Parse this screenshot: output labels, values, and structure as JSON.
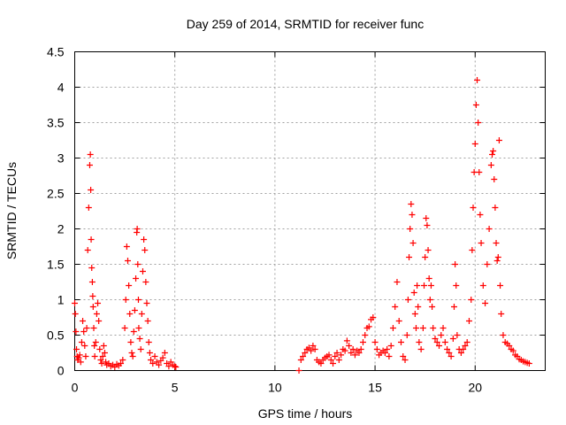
{
  "chart_data": {
    "type": "scatter",
    "title": "Day 259 of 2014, SRMTID for receiver func",
    "xlabel": "GPS time / hours",
    "ylabel": "SRMTID / TECUs",
    "xlim": [
      0,
      23.5
    ],
    "ylim": [
      0,
      4.5
    ],
    "xticks": [
      0,
      5,
      10,
      15,
      20
    ],
    "xtick_labels": [
      "0",
      "5",
      "10",
      "15",
      "20"
    ],
    "yticks": [
      0,
      0.5,
      1,
      1.5,
      2,
      2.5,
      3,
      3.5,
      4,
      4.5
    ],
    "ytick_labels": [
      "0",
      "0.5",
      "1",
      "1.5",
      "2",
      "2.5",
      "3",
      "3.5",
      "4",
      "4.5"
    ],
    "grid": true,
    "marker": "+",
    "color": "#ff0000",
    "series": [
      {
        "name": "SRMTID",
        "x": [
          0.0,
          0.03,
          0.06,
          0.09,
          0.12,
          0.15,
          0.2,
          0.25,
          0.3,
          0.35,
          0.4,
          0.45,
          0.5,
          0.55,
          0.6,
          0.65,
          0.7,
          0.75,
          0.78,
          0.8,
          0.82,
          0.85,
          0.88,
          0.9,
          0.92,
          0.95,
          0.98,
          1.0,
          1.05,
          1.1,
          1.15,
          1.2,
          1.25,
          1.3,
          1.35,
          1.4,
          1.45,
          1.5,
          1.55,
          1.6,
          1.7,
          1.8,
          1.9,
          2.0,
          2.1,
          2.2,
          2.3,
          2.4,
          2.5,
          2.55,
          2.6,
          2.65,
          2.7,
          2.75,
          2.8,
          2.85,
          2.9,
          2.95,
          3.0,
          3.05,
          3.1,
          3.12,
          3.15,
          3.18,
          3.2,
          3.25,
          3.3,
          3.35,
          3.4,
          3.45,
          3.5,
          3.55,
          3.6,
          3.65,
          3.7,
          3.75,
          3.8,
          3.9,
          4.0,
          4.1,
          4.2,
          4.3,
          4.4,
          4.5,
          4.6,
          4.7,
          4.8,
          4.9,
          5.0,
          5.05,
          11.2,
          11.3,
          11.4,
          11.5,
          11.6,
          11.7,
          11.8,
          11.9,
          12.0,
          12.1,
          12.2,
          12.3,
          12.4,
          12.5,
          12.6,
          12.7,
          12.8,
          12.9,
          13.0,
          13.1,
          13.2,
          13.3,
          13.4,
          13.5,
          13.6,
          13.7,
          13.8,
          13.9,
          14.0,
          14.1,
          14.2,
          14.3,
          14.4,
          14.5,
          14.6,
          14.7,
          14.8,
          14.9,
          15.0,
          15.1,
          15.2,
          15.3,
          15.4,
          15.5,
          15.6,
          15.7,
          15.8,
          15.9,
          16.0,
          16.1,
          16.2,
          16.3,
          16.4,
          16.5,
          16.6,
          16.65,
          16.7,
          16.75,
          16.8,
          16.85,
          16.9,
          16.95,
          17.0,
          17.05,
          17.1,
          17.15,
          17.2,
          17.3,
          17.4,
          17.45,
          17.5,
          17.55,
          17.6,
          17.65,
          17.7,
          17.75,
          17.8,
          17.85,
          17.9,
          18.0,
          18.1,
          18.2,
          18.3,
          18.4,
          18.5,
          18.6,
          18.7,
          18.8,
          18.9,
          18.95,
          19.0,
          19.05,
          19.1,
          19.2,
          19.3,
          19.4,
          19.5,
          19.6,
          19.7,
          19.8,
          19.85,
          19.9,
          19.95,
          20.0,
          20.05,
          20.1,
          20.15,
          20.2,
          20.25,
          20.3,
          20.4,
          20.5,
          20.6,
          20.7,
          20.8,
          20.85,
          20.9,
          20.95,
          21.0,
          21.05,
          21.1,
          21.15,
          21.2,
          21.25,
          21.3,
          21.4,
          21.5,
          21.6,
          21.7,
          21.8,
          21.9,
          22.0,
          22.1,
          22.2,
          22.3,
          22.4,
          22.5,
          22.6,
          22.7
        ],
        "y": [
          0.95,
          0.8,
          0.55,
          0.3,
          0.2,
          0.15,
          0.18,
          0.22,
          0.12,
          0.4,
          0.7,
          0.55,
          0.35,
          0.2,
          0.6,
          1.7,
          2.3,
          2.9,
          3.05,
          2.55,
          1.85,
          1.45,
          1.25,
          1.05,
          0.9,
          0.6,
          0.35,
          0.2,
          0.4,
          0.8,
          0.95,
          0.7,
          0.3,
          0.15,
          0.1,
          0.2,
          0.35,
          0.25,
          0.12,
          0.08,
          0.1,
          0.06,
          0.08,
          0.05,
          0.09,
          0.07,
          0.1,
          0.15,
          0.6,
          1.0,
          1.75,
          1.55,
          1.2,
          0.8,
          0.4,
          0.25,
          0.2,
          0.55,
          0.85,
          1.3,
          1.95,
          2.0,
          1.5,
          1.0,
          0.6,
          0.45,
          0.3,
          0.8,
          1.4,
          1.85,
          1.7,
          1.25,
          0.95,
          0.7,
          0.4,
          0.25,
          0.15,
          0.1,
          0.2,
          0.12,
          0.08,
          0.14,
          0.18,
          0.25,
          0.1,
          0.06,
          0.12,
          0.08,
          0.06,
          0.05,
          0.0,
          0.15,
          0.2,
          0.25,
          0.3,
          0.32,
          0.28,
          0.35,
          0.3,
          0.15,
          0.12,
          0.1,
          0.15,
          0.18,
          0.2,
          0.22,
          0.15,
          0.1,
          0.2,
          0.25,
          0.15,
          0.22,
          0.3,
          0.28,
          0.42,
          0.35,
          0.25,
          0.3,
          0.22,
          0.28,
          0.25,
          0.3,
          0.4,
          0.5,
          0.6,
          0.62,
          0.72,
          0.75,
          0.4,
          0.3,
          0.22,
          0.25,
          0.28,
          0.25,
          0.3,
          0.2,
          0.35,
          0.6,
          0.9,
          1.25,
          0.7,
          0.4,
          0.2,
          0.15,
          0.5,
          1.0,
          1.6,
          2.0,
          2.35,
          2.2,
          1.8,
          1.1,
          0.8,
          0.6,
          1.2,
          0.9,
          0.4,
          0.3,
          0.6,
          1.2,
          1.6,
          2.15,
          2.05,
          1.7,
          1.3,
          1.0,
          1.2,
          0.9,
          0.6,
          0.45,
          0.4,
          0.35,
          0.5,
          0.6,
          0.4,
          0.3,
          0.25,
          0.2,
          0.45,
          0.9,
          1.5,
          1.2,
          0.5,
          0.3,
          0.25,
          0.3,
          0.35,
          0.4,
          0.7,
          1.0,
          1.7,
          2.3,
          2.8,
          3.2,
          3.75,
          4.1,
          3.5,
          2.8,
          2.2,
          1.8,
          1.2,
          0.95,
          1.5,
          2.0,
          2.9,
          3.05,
          3.1,
          2.7,
          2.3,
          1.8,
          1.55,
          1.6,
          3.25,
          1.2,
          0.8,
          0.5,
          0.4,
          0.38,
          0.35,
          0.3,
          0.28,
          0.22,
          0.2,
          0.16,
          0.15,
          0.13,
          0.12,
          0.11,
          0.1
        ]
      }
    ]
  }
}
